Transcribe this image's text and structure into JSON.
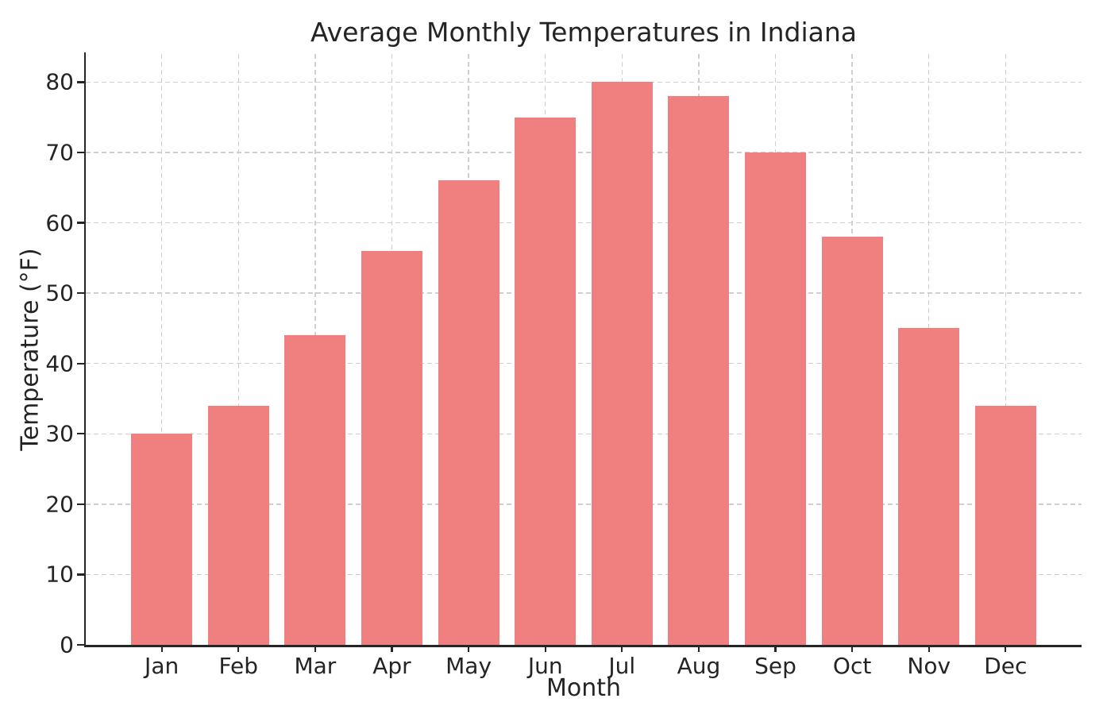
{
  "chart_data": {
    "type": "bar",
    "title": "Average Monthly Temperatures in Indiana",
    "xlabel": "Month",
    "ylabel": "Temperature (°F)",
    "categories": [
      "Jan",
      "Feb",
      "Mar",
      "Apr",
      "May",
      "Jun",
      "Jul",
      "Aug",
      "Sep",
      "Oct",
      "Nov",
      "Dec"
    ],
    "values": [
      30,
      34,
      44,
      56,
      66,
      75,
      80,
      78,
      70,
      58,
      45,
      34
    ],
    "yticks": [
      0,
      10,
      20,
      30,
      40,
      50,
      60,
      70,
      80
    ],
    "ylim": [
      0,
      84
    ],
    "legend": "none",
    "grid": "dashed-both-axes",
    "colors": {
      "bar": "#F08080",
      "grid": "#CFCFCF",
      "spine": "#262626",
      "text": "#242424",
      "background": "#FFFFFF"
    }
  }
}
